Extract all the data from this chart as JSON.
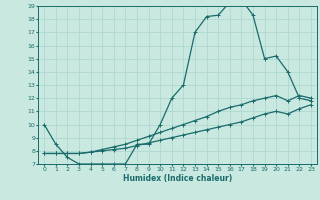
{
  "xlabel": "Humidex (Indice chaleur)",
  "xlim": [
    -0.5,
    23.5
  ],
  "ylim": [
    7,
    19
  ],
  "yticks": [
    7,
    8,
    9,
    10,
    11,
    12,
    13,
    14,
    15,
    16,
    17,
    18,
    19
  ],
  "xticks": [
    0,
    1,
    2,
    3,
    4,
    5,
    6,
    7,
    8,
    9,
    10,
    11,
    12,
    13,
    14,
    15,
    16,
    17,
    18,
    19,
    20,
    21,
    22,
    23
  ],
  "bg_color": "#c8e8e0",
  "line_color": "#1a6b6b",
  "grid_color": "#b0d8d0",
  "line1_x": [
    0,
    1,
    2,
    3,
    4,
    5,
    6,
    7,
    8,
    9,
    10,
    11,
    12,
    13,
    14,
    15,
    16,
    17,
    18,
    19,
    20,
    21,
    22,
    23
  ],
  "line1_y": [
    10.0,
    8.5,
    7.5,
    7.0,
    7.0,
    7.0,
    7.0,
    7.0,
    8.5,
    8.5,
    10.0,
    12.0,
    13.0,
    17.0,
    18.2,
    18.3,
    19.3,
    19.5,
    18.3,
    15.0,
    15.2,
    14.0,
    12.0,
    11.8
  ],
  "line2_x": [
    0,
    1,
    2,
    3,
    4,
    5,
    6,
    7,
    8,
    9,
    10,
    11,
    12,
    13,
    14,
    15,
    16,
    17,
    18,
    19,
    20,
    21,
    22,
    23
  ],
  "line2_y": [
    7.8,
    7.8,
    7.8,
    7.8,
    7.9,
    8.1,
    8.3,
    8.5,
    8.8,
    9.1,
    9.4,
    9.7,
    10.0,
    10.3,
    10.6,
    11.0,
    11.3,
    11.5,
    11.8,
    12.0,
    12.2,
    11.8,
    12.2,
    12.0
  ],
  "line3_x": [
    0,
    1,
    2,
    3,
    4,
    5,
    6,
    7,
    8,
    9,
    10,
    11,
    12,
    13,
    14,
    15,
    16,
    17,
    18,
    19,
    20,
    21,
    22,
    23
  ],
  "line3_y": [
    7.8,
    7.8,
    7.8,
    7.8,
    7.9,
    8.0,
    8.1,
    8.2,
    8.4,
    8.6,
    8.8,
    9.0,
    9.2,
    9.4,
    9.6,
    9.8,
    10.0,
    10.2,
    10.5,
    10.8,
    11.0,
    10.8,
    11.2,
    11.5
  ],
  "markersize": 3,
  "linewidth": 0.9
}
